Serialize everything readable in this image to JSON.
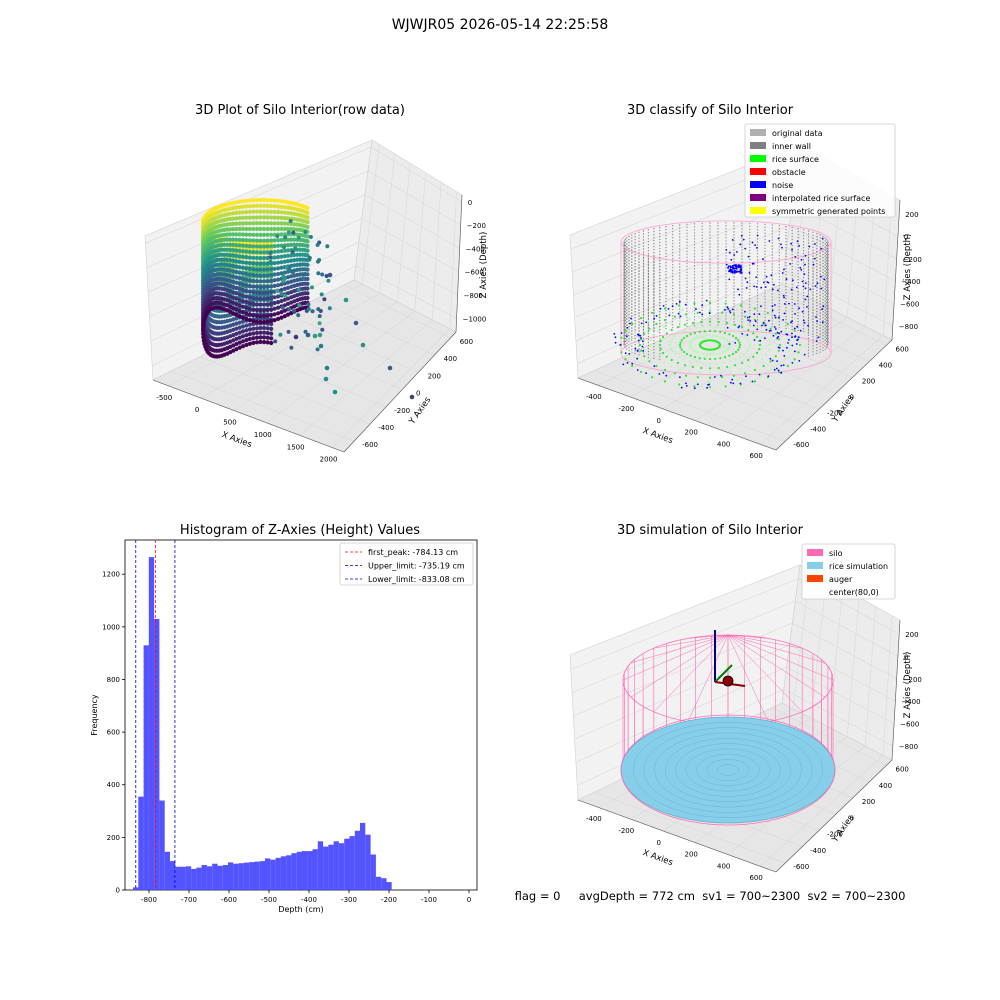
{
  "suptitle": "WJWJR05 2026-05-14 22:25:58",
  "status_line": "flag = 0     avgDepth = 772 cm  sv1 = 700~2300  sv2 = 700~2300",
  "chart_data": [
    {
      "type": "scatter3d",
      "title": "3D Plot of Silo Interior(row data)",
      "xlabel": "X Axies",
      "ylabel": "Y Axies",
      "zlabel": "Z Axies (Depth)",
      "x_ticks": [
        "-500",
        "0",
        "500",
        "1000",
        "1500",
        "2000"
      ],
      "y_ticks": [
        "-600",
        "-400",
        "-200",
        "0",
        "200",
        "400",
        "600"
      ],
      "z_ticks": [
        "0",
        "−200",
        "−400",
        "−600",
        "−800",
        "−1000"
      ],
      "xlim": [
        -600,
        2000
      ],
      "ylim": [
        -650,
        650
      ],
      "zlim": [
        -1100,
        50
      ],
      "colormap": "viridis"
    },
    {
      "type": "scatter3d",
      "title": "3D classify of Silo Interior",
      "xlabel": "X Axies",
      "ylabel": "Y Axies",
      "zlabel": "Z Axies (Depth)",
      "x_ticks": [
        "-400",
        "-200",
        "0",
        "200",
        "400",
        "600"
      ],
      "y_ticks": [
        "-600",
        "-400",
        "-200",
        "0",
        "200",
        "400",
        "600"
      ],
      "z_ticks": [
        "200",
        "0",
        "−200",
        "−400",
        "−600",
        "−800"
      ],
      "legend": [
        {
          "label": "original data",
          "color": "#b0b0b0"
        },
        {
          "label": "inner wall",
          "color": "#808080"
        },
        {
          "label": "rice surface",
          "color": "#00ff00"
        },
        {
          "label": "obstacle",
          "color": "#ff0000"
        },
        {
          "label": "noise",
          "color": "#0000ff"
        },
        {
          "label": "interpolated rice surface",
          "color": "#800080"
        },
        {
          "label": "symmetric generated points",
          "color": "#ffff00"
        }
      ],
      "legend_loc": "upper right"
    },
    {
      "type": "bar",
      "title": "Histogram of Z-Axies (Height) Values",
      "xlabel": "Depth (cm)",
      "ylabel": "Frequency",
      "xlim": [
        -860,
        20
      ],
      "ylim": [
        0,
        1330
      ],
      "x_ticks": [
        -800,
        -700,
        -600,
        -500,
        -400,
        -300,
        -200,
        -100,
        0
      ],
      "y_ticks": [
        0,
        200,
        400,
        600,
        800,
        1000,
        1200
      ],
      "bar_color": "#4b4bff",
      "bin_start": -840,
      "bin_width": 13.2,
      "values": [
        10,
        355,
        930,
        1265,
        1030,
        340,
        145,
        110,
        88,
        88,
        90,
        80,
        85,
        95,
        90,
        100,
        92,
        95,
        105,
        100,
        102,
        104,
        106,
        108,
        110,
        120,
        115,
        122,
        128,
        132,
        140,
        145,
        148,
        148,
        155,
        185,
        165,
        172,
        185,
        178,
        195,
        205,
        225,
        255,
        210,
        135,
        50,
        45,
        30
      ],
      "vlines": [
        {
          "label": "first_peak: -784.13 cm",
          "x": -784.13,
          "color": "#ff0000"
        },
        {
          "label": "Upper_limit: -735.19 cm",
          "x": -735.19,
          "color": "#0000cc"
        },
        {
          "label": "Lower_limit: -833.08 cm",
          "x": -833.08,
          "color": "#0000cc"
        }
      ],
      "legend_loc": "upper right"
    },
    {
      "type": "surface3d",
      "title": "3D simulation of Silo Interior",
      "xlabel": "X Axies",
      "ylabel": "Y Axies",
      "zlabel": "Z Axies (Depth)",
      "x_ticks": [
        "-400",
        "-200",
        "0",
        "200",
        "400",
        "600"
      ],
      "y_ticks": [
        "-600",
        "-400",
        "-200",
        "0",
        "200",
        "400",
        "600"
      ],
      "z_ticks": [
        "200",
        "0",
        "−200",
        "−400",
        "−600",
        "−800"
      ],
      "legend": [
        {
          "label": "silo",
          "color": "#ff69b4"
        },
        {
          "label": "rice simulation",
          "color": "#87ceeb"
        },
        {
          "label": "auger",
          "color": "#ff4500"
        },
        {
          "label": "center(80,0)",
          "color": ""
        }
      ],
      "legend_loc": "upper right"
    }
  ]
}
